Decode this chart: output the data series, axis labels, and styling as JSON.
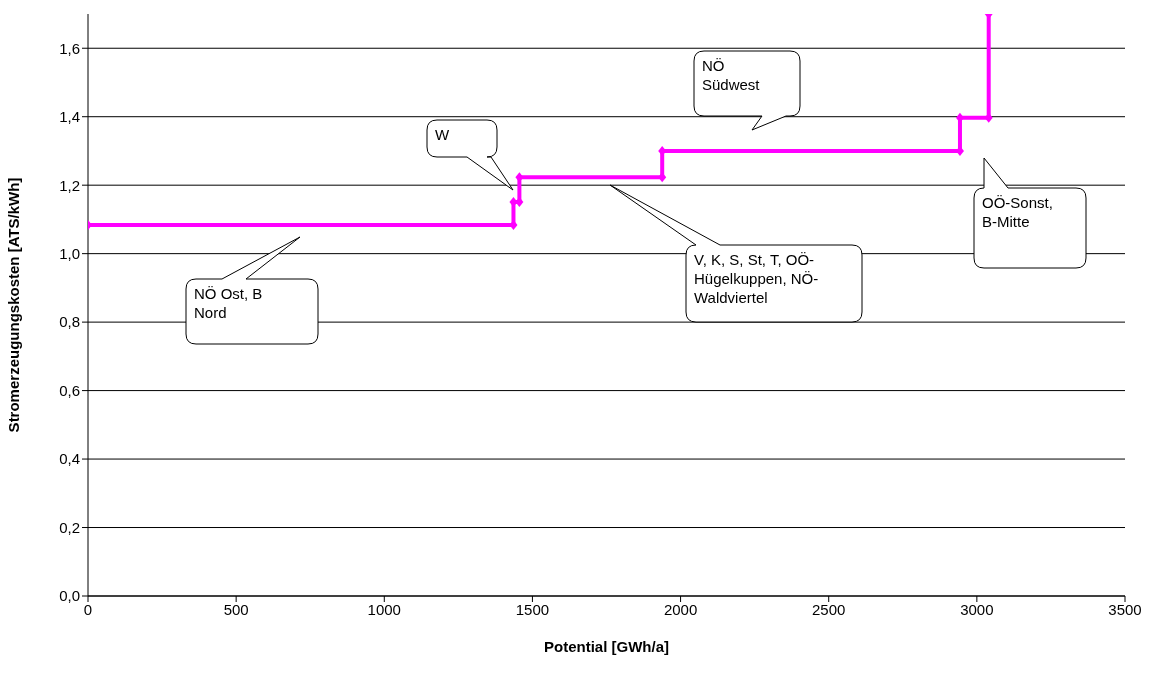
{
  "chart_data": {
    "type": "line",
    "xlabel": "Potential [GWh/a]",
    "ylabel": "Stromerzeugungskosten [ATS/kWh]",
    "x": [
      0,
      1436,
      1436,
      1456,
      1456,
      1938,
      1938,
      2943,
      2943,
      3040,
      3040
    ],
    "series": [
      {
        "color": "#ff00ff",
        "values": [
          1.084,
          1.084,
          1.151,
          1.151,
          1.223,
          1.223,
          1.3,
          1.3,
          1.397,
          1.397,
          1.7
        ]
      }
    ],
    "xlim": [
      0,
      3500
    ],
    "xticks": [
      0,
      500,
      1000,
      1500,
      2000,
      2500,
      3000,
      3500
    ],
    "ylim": [
      0,
      1.7
    ],
    "yticks": [
      {
        "value": 0,
        "label": "0,0"
      },
      {
        "value": 0.2,
        "label": "0,2"
      },
      {
        "value": 0.4,
        "label": "0,4"
      },
      {
        "value": 0.6,
        "label": "0,6"
      },
      {
        "value": 0.8,
        "label": "0,8"
      },
      {
        "value": 1,
        "label": "1,0"
      },
      {
        "value": 1.2,
        "label": "1,2"
      },
      {
        "value": 1.4,
        "label": "1,4"
      },
      {
        "value": 1.6,
        "label": "1,6"
      }
    ],
    "grid": "y",
    "marker": "diamond",
    "line_style": "solid",
    "annotations": [
      "NÖ Ost, B Nord",
      "W",
      "V, K, S, St, T, OÖ-Hügelkuppen, NÖ-Waldviertel",
      "NÖ Südwest",
      "OÖ-Sonst, B-Mitte"
    ]
  }
}
